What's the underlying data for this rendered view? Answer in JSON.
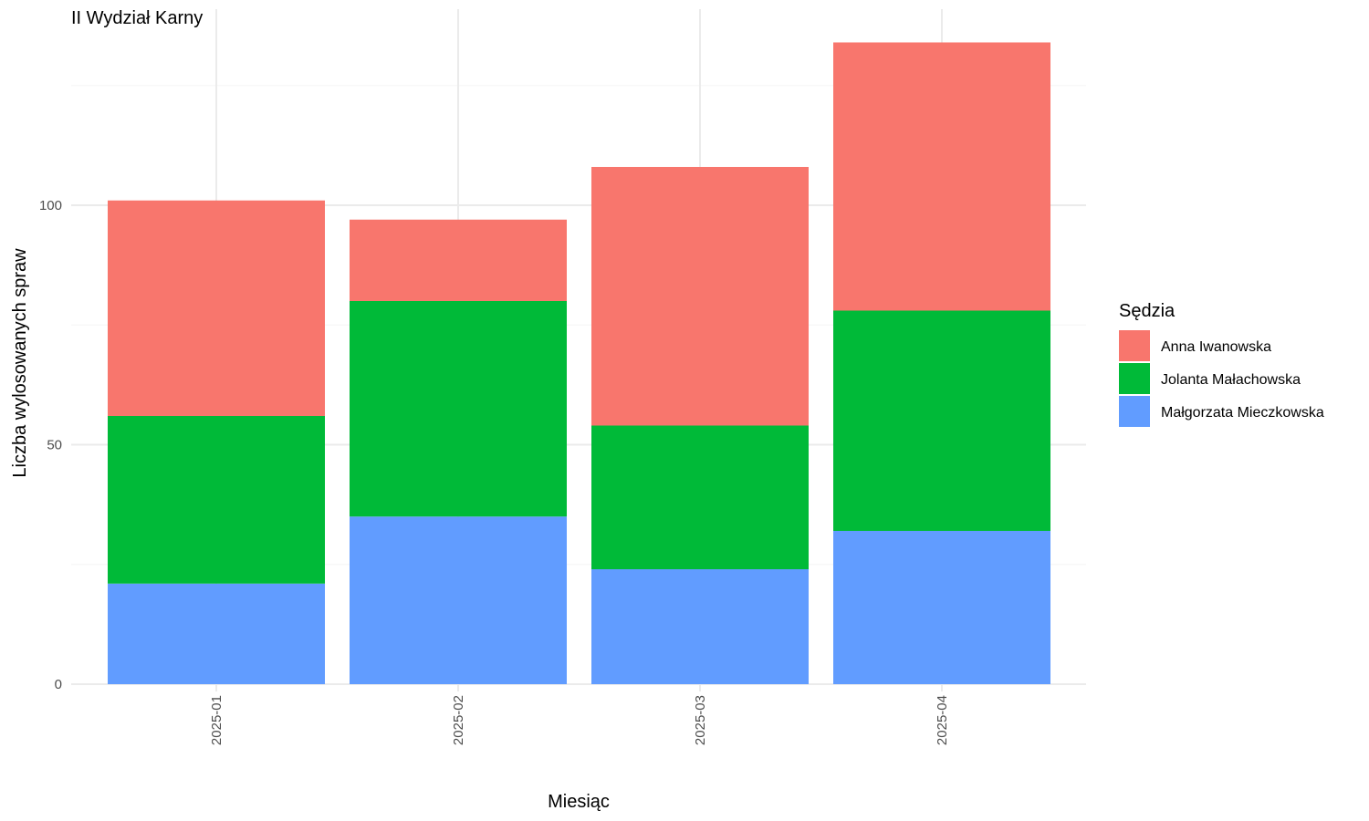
{
  "chart_data": {
    "type": "bar",
    "stacked": true,
    "title": "II Wydział Karny",
    "xlabel": "Miesiąc",
    "ylabel": "Liczba wylosowanych spraw",
    "categories": [
      "2025-01",
      "2025-02",
      "2025-03",
      "2025-04"
    ],
    "ylim": [
      0,
      134
    ],
    "yticks": [
      0,
      50,
      100
    ],
    "grid": true,
    "legend": {
      "title": "Sędzia",
      "position": "right"
    },
    "series": [
      {
        "name": "Małgorzata Mieczkowska",
        "color": "#619CFF",
        "values": [
          21,
          35,
          24,
          32
        ]
      },
      {
        "name": "Jolanta Małachowska",
        "color": "#00BA38",
        "values": [
          35,
          45,
          30,
          46
        ]
      },
      {
        "name": "Anna Iwanowska",
        "color": "#F8766D",
        "values": [
          45,
          17,
          54,
          56
        ]
      }
    ],
    "legend_order": [
      "Anna Iwanowska",
      "Jolanta Małachowska",
      "Małgorzata Mieczkowska"
    ]
  }
}
